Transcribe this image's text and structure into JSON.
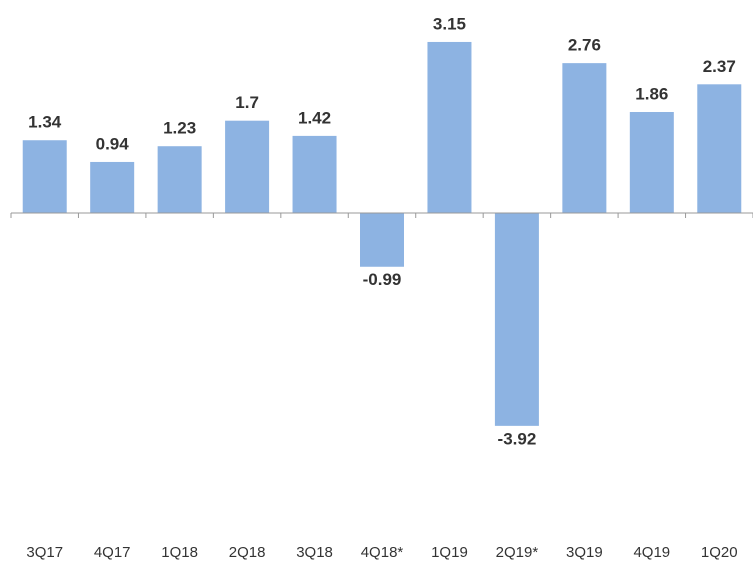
{
  "chart_data": {
    "type": "bar",
    "categories": [
      "3Q17",
      "4Q17",
      "1Q18",
      "2Q18",
      "3Q18",
      "4Q18*",
      "1Q19",
      "2Q19*",
      "3Q19",
      "4Q19",
      "1Q20"
    ],
    "values": [
      1.34,
      0.94,
      1.23,
      1.7,
      1.42,
      -0.99,
      3.15,
      -3.92,
      2.76,
      1.86,
      2.37
    ],
    "color": "#8db3e2"
  }
}
